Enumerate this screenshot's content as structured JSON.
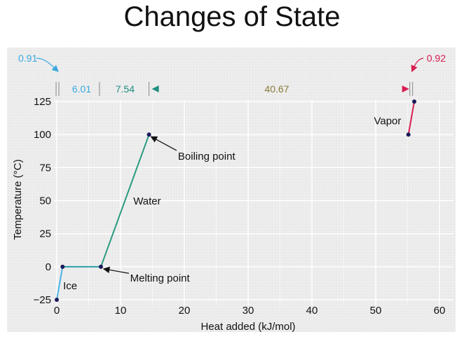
{
  "chart_data": {
    "type": "line",
    "title": "Changes of State",
    "xlabel": "Heat added (kJ/mol)",
    "ylabel": "Temperature (°C)",
    "xlim": [
      0,
      60
    ],
    "ylim": [
      -25,
      125
    ],
    "xticks": [
      0,
      10,
      20,
      30,
      40,
      50,
      60
    ],
    "yticks": [
      -25,
      0,
      25,
      50,
      75,
      100,
      125
    ],
    "grid": true,
    "points": [
      {
        "x": 0,
        "y": -25
      },
      {
        "x": 0.91,
        "y": 0
      },
      {
        "x": 6.92,
        "y": 0
      },
      {
        "x": 14.46,
        "y": 100
      },
      {
        "x": 55.13,
        "y": 100
      },
      {
        "x": 56.05,
        "y": 125
      }
    ],
    "segments": [
      {
        "name": "Ice",
        "from": 0,
        "to": 1,
        "color": "#4db3e6"
      },
      {
        "name": "",
        "from": 1,
        "to": 2,
        "color": "#2aa0a8"
      },
      {
        "name": "Water",
        "from": 2,
        "to": 3,
        "color": "#2a9a80"
      },
      {
        "name": "",
        "from": 3,
        "to": 4,
        "color": "gradient"
      },
      {
        "name": "Vapor",
        "from": 4,
        "to": 5,
        "color": "#d92050"
      }
    ],
    "annotations": {
      "melting": "Melting point",
      "boiling": "Boiling point",
      "ice": "Ice",
      "water": "Water",
      "vapor": "Vapor"
    },
    "heat_values": {
      "ice_heat": "0.91",
      "fusion": "6.01",
      "water_heat": "7.54",
      "vaporization": "40.67",
      "vapor_heat": "0.92"
    },
    "colors": {
      "ice": "#3aa8e0",
      "water": "#1f8f80",
      "vapor": "#d81b50",
      "point": "#1a1a5a",
      "background": "#eeeeee"
    }
  }
}
